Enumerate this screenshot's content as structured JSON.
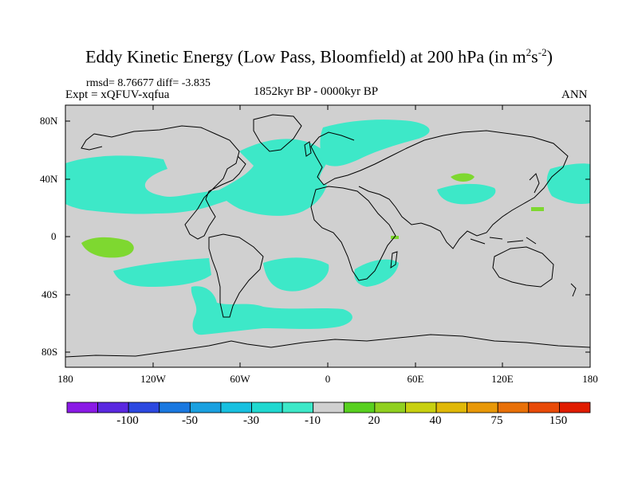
{
  "title": {
    "main": "Eddy Kinetic Energy (Low Pass, Bloomfield) at 200 hPa (in m",
    "sup1": "2",
    "mid": "s",
    "sup2": "-2",
    "close": ")"
  },
  "stats": "rmsd= 8.76677 diff= -3.835",
  "experiment": "Expt = xQFUV-xqfua",
  "period": "1852kyr BP - 0000kyr BP",
  "season": "ANN",
  "map": {
    "lat_labels": [
      "80N",
      "40N",
      "0",
      "40S",
      "80S"
    ],
    "lon_labels": [
      "180",
      "120W",
      "60W",
      "0",
      "60E",
      "120E",
      "180"
    ],
    "land_color": "#d0d0d0",
    "ocean_color": "#d0d0d0",
    "cyan_color": "#3de8c8",
    "green_color": "#7ed830",
    "coastline_color": "#000000"
  },
  "colorbar": {
    "colors": [
      "#8a1ae6",
      "#5a28e0",
      "#2c48e0",
      "#1a78e0",
      "#1aa0e0",
      "#18c0e0",
      "#20d8d0",
      "#3de8c8",
      "#d0d0d0",
      "#58d020",
      "#90d020",
      "#c8d010",
      "#e0b808",
      "#e89808",
      "#e87008",
      "#e84a08",
      "#e01c00"
    ],
    "labels": [
      "-100",
      "-50",
      "-30",
      "-10",
      "20",
      "40",
      "75",
      "150"
    ]
  }
}
